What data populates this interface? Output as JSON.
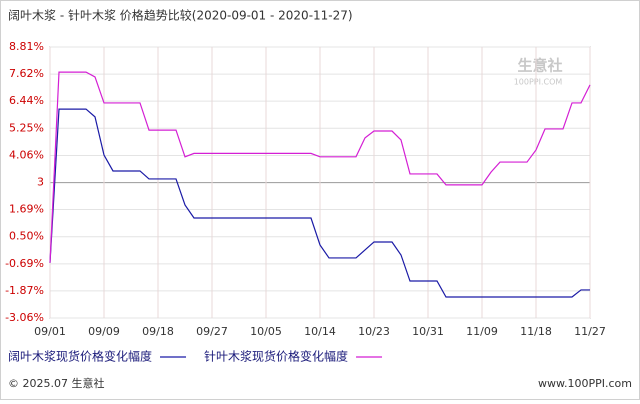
{
  "chart_data": {
    "type": "line",
    "title": "阔叶木浆 - 针叶木浆 价格趋势比较(2020-09-01 - 2020-11-27)",
    "categories": [
      "09/01",
      null,
      null,
      null,
      null,
      null,
      "09/09",
      null,
      null,
      null,
      null,
      null,
      "09/18",
      null,
      null,
      null,
      null,
      null,
      "09/27",
      null,
      null,
      null,
      null,
      null,
      "10/05",
      null,
      null,
      null,
      null,
      null,
      "10/14",
      null,
      null,
      null,
      null,
      null,
      "10/23",
      null,
      null,
      null,
      null,
      null,
      "10/31",
      null,
      null,
      null,
      null,
      null,
      "11/09",
      null,
      null,
      null,
      null,
      null,
      "11/18",
      null,
      null,
      null,
      null,
      null,
      "11/27"
    ],
    "series": [
      {
        "name": "阔叶木浆现货价格变化幅度",
        "color": "#1a1aa6",
        "values": [
          -0.64,
          6.09,
          6.09,
          6.09,
          6.09,
          5.75,
          4.08,
          3.38,
          3.38,
          3.38,
          3.38,
          3.03,
          3.03,
          3.03,
          3.03,
          1.89,
          1.32,
          1.32,
          1.32,
          1.32,
          1.32,
          1.32,
          1.32,
          1.32,
          1.32,
          1.32,
          1.32,
          1.32,
          1.32,
          1.32,
          0.14,
          -0.43,
          -0.43,
          -0.43,
          -0.43,
          -0.08,
          0.27,
          0.27,
          0.27,
          -0.3,
          -1.44,
          -1.44,
          -1.44,
          -1.44,
          -2.14,
          -2.14,
          -2.14,
          -2.14,
          -2.14,
          -2.14,
          -2.14,
          -2.14,
          -2.14,
          -2.14,
          -2.14,
          -2.14,
          -2.14,
          -2.14,
          -2.14,
          -1.83,
          -1.83
        ]
      },
      {
        "name": "针叶木浆现货价格变化幅度",
        "color": "#d41fd4",
        "values": [
          -0.64,
          7.71,
          7.71,
          7.71,
          7.71,
          7.5,
          6.36,
          6.36,
          6.36,
          6.36,
          6.36,
          5.17,
          5.17,
          5.17,
          5.17,
          4.0,
          4.15,
          4.15,
          4.15,
          4.15,
          4.15,
          4.15,
          4.15,
          4.15,
          4.15,
          4.15,
          4.15,
          4.15,
          4.15,
          4.15,
          4.0,
          4.0,
          4.0,
          4.0,
          4.0,
          4.83,
          5.13,
          5.13,
          5.13,
          4.74,
          3.25,
          3.25,
          3.25,
          3.25,
          2.77,
          2.77,
          2.77,
          2.77,
          2.77,
          3.33,
          3.77,
          3.77,
          3.77,
          3.77,
          4.3,
          5.22,
          5.22,
          5.22,
          6.36,
          6.36,
          7.15
        ]
      }
    ],
    "ylim": [
      -3.06,
      8.81
    ],
    "yticks": [
      {
        "value": 8.81,
        "label": "8.81%"
      },
      {
        "value": 7.62,
        "label": "7.62%"
      },
      {
        "value": 6.44,
        "label": "6.44%"
      },
      {
        "value": 5.25,
        "label": "5.25%"
      },
      {
        "value": 4.06,
        "label": "4.06%"
      },
      {
        "value": 2.87,
        "label": "3"
      },
      {
        "value": 1.69,
        "label": "1.69%"
      },
      {
        "value": 0.5,
        "label": "0.50%"
      },
      {
        "value": -0.69,
        "label": "-0.69%"
      },
      {
        "value": -1.87,
        "label": "-1.87%"
      },
      {
        "value": -3.06,
        "label": "-3.06%"
      }
    ],
    "grid": true,
    "watermark": {
      "name": "生意社",
      "url": "100PPI.COM"
    },
    "footer": {
      "copyright": "© 2025.07 生意社",
      "site": "www.100PPI.com"
    }
  }
}
